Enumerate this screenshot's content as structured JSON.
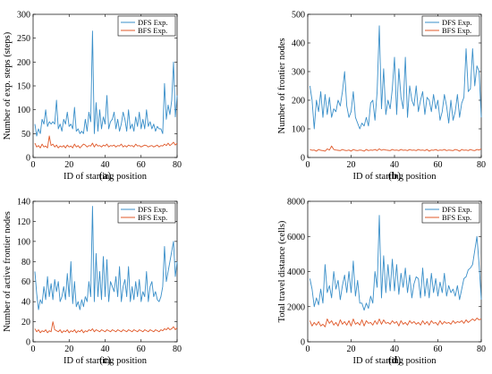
{
  "colors": {
    "dfs": "#3a8fc9",
    "bfs": "#e0592a"
  },
  "chart_data": [
    {
      "type": "line",
      "panel_label": "(a)",
      "xlabel": "ID of starting position",
      "ylabel": "Number of exp. steps (steps)",
      "xlim": [
        0,
        80
      ],
      "ylim": [
        0,
        300
      ],
      "xticks": [
        0,
        20,
        40,
        60,
        80
      ],
      "yticks": [
        0,
        50,
        100,
        150,
        200,
        250,
        300
      ],
      "legend_position": "top-right",
      "x": [
        1,
        2,
        3,
        4,
        5,
        6,
        7,
        8,
        9,
        10,
        11,
        12,
        13,
        14,
        15,
        16,
        17,
        18,
        19,
        20,
        21,
        22,
        23,
        24,
        25,
        26,
        27,
        28,
        29,
        30,
        31,
        32,
        33,
        34,
        35,
        36,
        37,
        38,
        39,
        40,
        41,
        42,
        43,
        44,
        45,
        46,
        47,
        48,
        49,
        50,
        51,
        52,
        53,
        54,
        55,
        56,
        57,
        58,
        59,
        60,
        61,
        62,
        63,
        64,
        65,
        66,
        67,
        68,
        69,
        70,
        71,
        72,
        73,
        74,
        75,
        76,
        77,
        78,
        79,
        80
      ],
      "series": [
        {
          "name": "DFS Exp.",
          "color_key": "dfs",
          "values": [
            70,
            45,
            60,
            50,
            80,
            70,
            100,
            65,
            75,
            70,
            75,
            70,
            120,
            60,
            70,
            55,
            80,
            70,
            95,
            65,
            70,
            60,
            105,
            55,
            60,
            50,
            55,
            50,
            80,
            55,
            95,
            75,
            265,
            50,
            115,
            55,
            100,
            60,
            85,
            70,
            130,
            60,
            75,
            80,
            95,
            60,
            80,
            55,
            70,
            95,
            80,
            55,
            100,
            60,
            70,
            55,
            85,
            65,
            95,
            60,
            80,
            60,
            100,
            65,
            75,
            60,
            70,
            55,
            65,
            60,
            60,
            50,
            155,
            80,
            110,
            90,
            120,
            200,
            85,
            130
          ]
        },
        {
          "name": "BFS Exp.",
          "color_key": "bfs",
          "values": [
            30,
            22,
            25,
            20,
            28,
            22,
            24,
            20,
            45,
            25,
            28,
            22,
            26,
            20,
            24,
            22,
            25,
            20,
            26,
            22,
            24,
            20,
            28,
            22,
            25,
            20,
            24,
            28,
            26,
            22,
            25,
            24,
            30,
            22,
            28,
            24,
            25,
            22,
            26,
            24,
            28,
            22,
            25,
            24,
            26,
            22,
            25,
            24,
            28,
            22,
            25,
            22,
            26,
            24,
            25,
            22,
            28,
            24,
            25,
            22,
            24,
            26,
            25,
            22,
            24,
            25,
            22,
            24,
            26,
            22,
            25,
            24,
            28,
            25,
            30,
            25,
            28,
            32,
            26,
            30
          ]
        }
      ]
    },
    {
      "type": "line",
      "panel_label": "(b)",
      "xlabel": "ID of starting position",
      "ylabel": "Number of frontier nodes",
      "xlim": [
        0,
        80
      ],
      "ylim": [
        0,
        500
      ],
      "xticks": [
        0,
        20,
        40,
        60,
        80
      ],
      "yticks": [
        0,
        100,
        200,
        300,
        400,
        500
      ],
      "legend_position": "top-right",
      "x": [
        1,
        2,
        3,
        4,
        5,
        6,
        7,
        8,
        9,
        10,
        11,
        12,
        13,
        14,
        15,
        16,
        17,
        18,
        19,
        20,
        21,
        22,
        23,
        24,
        25,
        26,
        27,
        28,
        29,
        30,
        31,
        32,
        33,
        34,
        35,
        36,
        37,
        38,
        39,
        40,
        41,
        42,
        43,
        44,
        45,
        46,
        47,
        48,
        49,
        50,
        51,
        52,
        53,
        54,
        55,
        56,
        57,
        58,
        59,
        60,
        61,
        62,
        63,
        64,
        65,
        66,
        67,
        68,
        69,
        70,
        71,
        72,
        73,
        74,
        75,
        76,
        77,
        78,
        79,
        80
      ],
      "series": [
        {
          "name": "DFS Exp.",
          "color_key": "dfs",
          "values": [
            250,
            200,
            100,
            200,
            160,
            230,
            140,
            220,
            150,
            210,
            140,
            170,
            160,
            200,
            180,
            230,
            300,
            180,
            140,
            160,
            230,
            140,
            120,
            100,
            120,
            110,
            140,
            110,
            190,
            200,
            130,
            230,
            460,
            170,
            310,
            150,
            200,
            170,
            240,
            350,
            150,
            310,
            210,
            170,
            350,
            140,
            250,
            200,
            180,
            250,
            160,
            200,
            230,
            150,
            210,
            200,
            160,
            220,
            170,
            200,
            130,
            160,
            220,
            180,
            120,
            200,
            130,
            160,
            220,
            140,
            190,
            210,
            380,
            230,
            240,
            380,
            250,
            320,
            300,
            140
          ]
        },
        {
          "name": "BFS Exp.",
          "color_key": "bfs",
          "values": [
            28,
            25,
            26,
            22,
            28,
            25,
            24,
            22,
            30,
            26,
            40,
            28,
            26,
            25,
            24,
            28,
            25,
            24,
            26,
            22,
            28,
            25,
            24,
            26,
            25,
            22,
            28,
            24,
            26,
            25,
            28,
            24,
            30,
            25,
            28,
            26,
            25,
            24,
            28,
            25,
            26,
            24,
            28,
            25,
            26,
            24,
            28,
            25,
            26,
            24,
            28,
            25,
            26,
            24,
            28,
            22,
            26,
            25,
            28,
            24,
            26,
            25,
            28,
            24,
            26,
            25,
            24,
            28,
            26,
            22,
            28,
            25,
            26,
            24,
            28,
            25,
            24,
            28,
            26,
            30
          ]
        }
      ]
    },
    {
      "type": "line",
      "panel_label": "(c)",
      "xlabel": "ID of starting position",
      "ylabel": "Number of active frontier nodes",
      "xlim": [
        0,
        80
      ],
      "ylim": [
        0,
        140
      ],
      "xticks": [
        0,
        20,
        40,
        60,
        80
      ],
      "yticks": [
        0,
        20,
        40,
        60,
        80,
        100,
        120,
        140
      ],
      "legend_position": "top-right",
      "x": [
        1,
        2,
        3,
        4,
        5,
        6,
        7,
        8,
        9,
        10,
        11,
        12,
        13,
        14,
        15,
        16,
        17,
        18,
        19,
        20,
        21,
        22,
        23,
        24,
        25,
        26,
        27,
        28,
        29,
        30,
        31,
        32,
        33,
        34,
        35,
        36,
        37,
        38,
        39,
        40,
        41,
        42,
        43,
        44,
        45,
        46,
        47,
        48,
        49,
        50,
        51,
        52,
        53,
        54,
        55,
        56,
        57,
        58,
        59,
        60,
        61,
        62,
        63,
        64,
        65,
        66,
        67,
        68,
        69,
        70,
        71,
        72,
        73,
        74,
        75,
        76,
        77,
        78,
        79,
        80
      ],
      "series": [
        {
          "name": "DFS Exp.",
          "color_key": "dfs",
          "values": [
            70,
            48,
            32,
            42,
            38,
            55,
            42,
            65,
            45,
            58,
            42,
            62,
            50,
            60,
            40,
            45,
            55,
            42,
            68,
            45,
            80,
            38,
            60,
            35,
            40,
            32,
            42,
            35,
            45,
            40,
            60,
            45,
            135,
            40,
            88,
            45,
            70,
            42,
            85,
            45,
            82,
            40,
            60,
            55,
            50,
            65,
            45,
            75,
            40,
            55,
            62,
            45,
            75,
            40,
            55,
            42,
            60,
            45,
            62,
            40,
            50,
            45,
            70,
            40,
            55,
            60,
            45,
            50,
            42,
            40,
            45,
            55,
            95,
            60,
            70,
            80,
            90,
            100,
            65,
            80
          ]
        },
        {
          "name": "BFS Exp.",
          "color_key": "bfs",
          "values": [
            13,
            10,
            12,
            9,
            11,
            10,
            12,
            9,
            11,
            10,
            20,
            12,
            11,
            10,
            12,
            9,
            11,
            10,
            12,
            9,
            11,
            10,
            12,
            9,
            11,
            10,
            12,
            9,
            11,
            10,
            12,
            11,
            13,
            10,
            12,
            11,
            10,
            12,
            11,
            10,
            12,
            11,
            10,
            12,
            11,
            10,
            12,
            11,
            10,
            12,
            11,
            10,
            12,
            11,
            10,
            12,
            11,
            10,
            12,
            11,
            10,
            12,
            11,
            10,
            12,
            11,
            10,
            12,
            11,
            10,
            12,
            11,
            13,
            12,
            14,
            12,
            13,
            15,
            12,
            14
          ]
        }
      ]
    },
    {
      "type": "line",
      "panel_label": "(d)",
      "xlabel": "ID of starting position",
      "ylabel": "Total travel distance (cells)",
      "xlim": [
        0,
        80
      ],
      "ylim": [
        0,
        8000
      ],
      "xticks": [
        0,
        20,
        40,
        60,
        80
      ],
      "yticks": [
        0,
        2000,
        4000,
        6000,
        8000
      ],
      "legend_position": "top-right",
      "x": [
        1,
        2,
        3,
        4,
        5,
        6,
        7,
        8,
        9,
        10,
        11,
        12,
        13,
        14,
        15,
        16,
        17,
        18,
        19,
        20,
        21,
        22,
        23,
        24,
        25,
        26,
        27,
        28,
        29,
        30,
        31,
        32,
        33,
        34,
        35,
        36,
        37,
        38,
        39,
        40,
        41,
        42,
        43,
        44,
        45,
        46,
        47,
        48,
        49,
        50,
        51,
        52,
        53,
        54,
        55,
        56,
        57,
        58,
        59,
        60,
        61,
        62,
        63,
        64,
        65,
        66,
        67,
        68,
        69,
        70,
        71,
        72,
        73,
        74,
        75,
        76,
        77,
        78,
        79,
        80
      ],
      "series": [
        {
          "name": "DFS Exp.",
          "color_key": "dfs",
          "values": [
            3600,
            3000,
            2000,
            2500,
            2100,
            3000,
            2200,
            4400,
            2800,
            3200,
            2500,
            4000,
            3000,
            3500,
            2400,
            3200,
            3800,
            2800,
            4000,
            2800,
            4600,
            2600,
            3500,
            2200,
            2200,
            1800,
            2200,
            1900,
            2600,
            2200,
            4000,
            3100,
            7200,
            2500,
            4900,
            2800,
            4400,
            2900,
            4700,
            2900,
            4400,
            2700,
            3900,
            3100,
            4200,
            2800,
            3800,
            2500,
            3300,
            3700,
            3600,
            2500,
            4200,
            2600,
            3600,
            2500,
            3900,
            2800,
            3600,
            2600,
            3400,
            2800,
            3900,
            2600,
            3200,
            2800,
            3000,
            2600,
            3200,
            2400,
            3000,
            3600,
            3700,
            4100,
            4200,
            4400,
            5200,
            6000,
            4400,
            2400
          ]
        },
        {
          "name": "BFS Exp.",
          "color_key": "bfs",
          "values": [
            1200,
            900,
            1100,
            950,
            1150,
            900,
            1000,
            850,
            1300,
            1050,
            1200,
            950,
            1100,
            900,
            1250,
            1000,
            1150,
            950,
            1200,
            900,
            1300,
            1000,
            1100,
            950,
            1250,
            900,
            1200,
            1050,
            1100,
            950,
            1200,
            1000,
            1300,
            1000,
            1250,
            1050,
            1100,
            1000,
            1200,
            1050,
            1150,
            900,
            1200,
            1000,
            1100,
            950,
            1200,
            1050,
            1150,
            1000,
            1100,
            950,
            1200,
            1000,
            1150,
            950,
            1200,
            1050,
            1100,
            950,
            1200,
            1000,
            1150,
            1050,
            1100,
            1000,
            1200,
            1050,
            1150,
            1100,
            1200,
            1050,
            1250,
            1100,
            1200,
            1300,
            1200,
            1350,
            1250,
            1300
          ]
        }
      ]
    }
  ]
}
